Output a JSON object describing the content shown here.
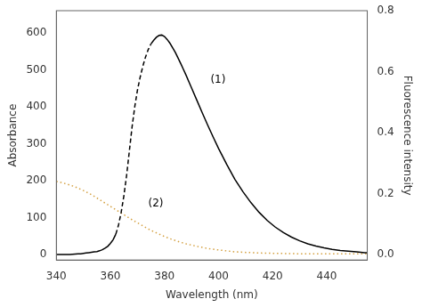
{
  "chart_data": {
    "type": "line",
    "title": "",
    "x_label": "Wavelength (nm)",
    "y_label": "Absorbance",
    "y2_label": "Fluorescence intensity",
    "xlim": [
      340,
      455
    ],
    "xticks": [
      340,
      360,
      380,
      400,
      420,
      440
    ],
    "ylim": [
      -15,
      660
    ],
    "yticks": [
      0,
      100,
      200,
      300,
      400,
      500,
      600
    ],
    "y2lim": [
      -0.018,
      0.8
    ],
    "y2ticks": [
      {
        "value": 0,
        "label": "0.0"
      },
      {
        "value": 0.2,
        "label": "0.2"
      },
      {
        "value": 0.4,
        "label": "0.4"
      },
      {
        "value": 0.6,
        "label": "0.6"
      },
      {
        "value": 0.8,
        "label": "0.8"
      }
    ],
    "grid": false,
    "series": [
      {
        "color": "#000000",
        "line_style": "solid",
        "x": [
          340,
          341,
          342,
          343,
          344,
          345,
          346,
          347,
          348,
          349,
          350,
          351,
          352,
          353,
          354,
          355,
          356,
          357,
          358,
          359,
          360,
          361,
          362
        ],
        "values": [
          0,
          0,
          0,
          0,
          0,
          0,
          0.5,
          1,
          1.5,
          2,
          3,
          4,
          5,
          6,
          7,
          8,
          10,
          13,
          17,
          22,
          30,
          40,
          55
        ]
      },
      {
        "color": "#000000",
        "line_style": "dashed",
        "x": [
          362,
          363,
          364,
          365,
          366,
          367,
          368,
          369,
          370,
          371,
          372,
          373,
          374,
          375
        ],
        "values": [
          55,
          80,
          115,
          160,
          215,
          280,
          345,
          400,
          445,
          480,
          510,
          535,
          555,
          570
        ]
      },
      {
        "color": "#000000",
        "line_style": "solid",
        "x": [
          375,
          376,
          377,
          378,
          379,
          380,
          381,
          382,
          383,
          384,
          385,
          386,
          387,
          388,
          389,
          390,
          392,
          394,
          396,
          398,
          400,
          403,
          406,
          409,
          412,
          415,
          418,
          421,
          424,
          427,
          430,
          433,
          436,
          439,
          442,
          445,
          448,
          451,
          454,
          455
        ],
        "values": [
          570,
          580,
          588,
          593,
          594,
          590,
          582,
          572,
          560,
          547,
          532,
          517,
          501,
          485,
          468,
          451,
          417,
          383,
          350,
          318,
          287,
          244,
          204,
          170,
          140,
          114,
          92,
          74,
          59,
          47,
          37,
          29,
          23,
          18,
          14,
          11,
          9,
          7,
          5,
          5
        ]
      },
      {
        "color": "#d4a040",
        "line_style": "dotted",
        "axis": "y2",
        "x": [
          340,
          342,
          344,
          346,
          348,
          350,
          352,
          354,
          356,
          358,
          360,
          362,
          364,
          366,
          368,
          370,
          372,
          374,
          376,
          378,
          380,
          382,
          384,
          386,
          388,
          390,
          393,
          396,
          399,
          402,
          406,
          410,
          415,
          420,
          426,
          432,
          438,
          444,
          450,
          455
        ],
        "values": [
          0.24,
          0.236,
          0.231,
          0.225,
          0.218,
          0.21,
          0.201,
          0.191,
          0.18,
          0.169,
          0.158,
          0.147,
          0.136,
          0.125,
          0.114,
          0.104,
          0.094,
          0.084,
          0.075,
          0.067,
          0.059,
          0.052,
          0.046,
          0.04,
          0.035,
          0.031,
          0.025,
          0.02,
          0.016,
          0.013,
          0.009,
          0.007,
          0.005,
          0.004,
          0.003,
          0.002,
          0.002,
          0.002,
          0.002,
          0.002
        ]
      }
    ],
    "annotations": [
      {
        "text": "(1)",
        "x": 397,
        "y": 465,
        "color": "#000000"
      },
      {
        "text": "(2)",
        "x": 374,
        "y": 130,
        "color": "#000000"
      }
    ]
  }
}
